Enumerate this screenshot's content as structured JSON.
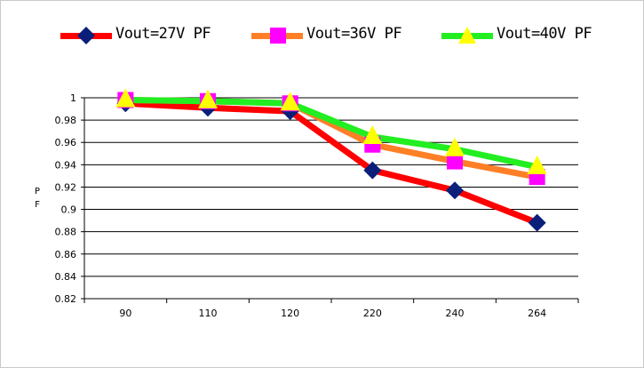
{
  "chart_data": {
    "type": "line",
    "title": "",
    "xlabel": "",
    "ylabel": "PF",
    "categories": [
      "90",
      "110",
      "120",
      "220",
      "240",
      "264"
    ],
    "ylim": [
      0.82,
      1.0
    ],
    "yticks": [
      "0.82",
      "0.84",
      "0.86",
      "0.88",
      "0.9",
      "0.92",
      "0.94",
      "0.96",
      "0.98",
      "1"
    ],
    "grid": true,
    "legend_position": "top",
    "series": [
      {
        "name": "Vout=27V PF",
        "values": [
          0.995,
          0.991,
          0.988,
          0.935,
          0.917,
          0.888
        ],
        "color": "#ff0000",
        "marker": "diamond",
        "marker_color": "#0a1f7a"
      },
      {
        "name": "Vout=36V PF",
        "values": [
          0.998,
          0.997,
          0.995,
          0.958,
          0.943,
          0.929
        ],
        "color": "#ff7f27",
        "marker": "square",
        "marker_color": "#ff00ff"
      },
      {
        "name": "Vout=40V PF",
        "values": [
          0.998,
          0.997,
          0.995,
          0.965,
          0.954,
          0.938
        ],
        "color": "#22ee22",
        "marker": "triangle",
        "marker_color": "#ffff00"
      }
    ]
  }
}
